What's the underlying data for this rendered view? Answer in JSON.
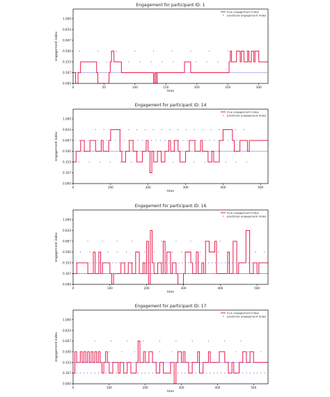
{
  "colors": {
    "true_line": "#e8194a",
    "pred_dots": "#2d2df0",
    "axis": "#000000",
    "frame": "#000000"
  },
  "chart_data": [
    {
      "type": "line",
      "title": "Engagement for participant ID: 1",
      "xlabel": "time",
      "ylabel": "engagement index",
      "xlim": [
        0,
        315
      ],
      "ylim": [
        0,
        1.15
      ],
      "xticks": [
        0,
        50,
        100,
        150,
        200,
        250,
        300
      ],
      "yticks": [
        0.0,
        0.167,
        0.333,
        0.5,
        0.667,
        0.833,
        1.0
      ],
      "ytick_labels": [
        "0.000",
        "0.167",
        "0.333",
        "0.500",
        "0.667",
        "0.833",
        "1.000"
      ],
      "legend": {
        "position": "top-right",
        "entries": [
          "true engagement index",
          "predicted engagement index"
        ]
      },
      "series": [
        {
          "name": "true engagement index",
          "kind": "step",
          "x": [
            0,
            4,
            8,
            12,
            38,
            40,
            58,
            60,
            62,
            66,
            78,
            80,
            130,
            132,
            134,
            136,
            170,
            172,
            180,
            190,
            252,
            254,
            256,
            264,
            270,
            272,
            276,
            282,
            284,
            288,
            292,
            294,
            300,
            315
          ],
          "y": [
            0.167,
            0.0,
            0.167,
            0.333,
            0.167,
            0.0,
            0.167,
            0.333,
            0.5,
            0.333,
            0.167,
            0.167,
            0.0,
            0.167,
            0.0,
            0.167,
            0.167,
            0.167,
            0.333,
            0.167,
            0.333,
            0.5,
            0.333,
            0.5,
            0.333,
            0.5,
            0.333,
            0.5,
            0.333,
            0.5,
            0.333,
            0.5,
            0.333,
            0.333
          ]
        },
        {
          "name": "predicted engagement index",
          "kind": "dots",
          "levels": [
            {
              "y": 0.167,
              "x_from": 0,
              "x_to": 315,
              "step": 2.5
            },
            {
              "y": 0.333,
              "x_from": 0,
              "x_to": 300,
              "step": 18
            },
            {
              "y": 0.5,
              "x_from": 10,
              "x_to": 300,
              "step": 30
            }
          ]
        }
      ]
    },
    {
      "type": "line",
      "title": "Engagement for participant ID: 14",
      "xlabel": "time",
      "ylabel": "engagement index",
      "xlim": [
        0,
        520
      ],
      "ylim": [
        0,
        1.15
      ],
      "xticks": [
        0,
        100,
        200,
        300,
        400,
        500
      ],
      "yticks": [
        0.0,
        0.167,
        0.333,
        0.5,
        0.667,
        0.833,
        1.0
      ],
      "ytick_labels": [
        "0.000",
        "0.167",
        "0.333",
        "0.500",
        "0.667",
        "0.833",
        "1.000"
      ],
      "legend": {
        "position": "top-right",
        "entries": [
          "true engagement index",
          "predicted engagement index"
        ]
      },
      "series": [
        {
          "name": "true engagement index",
          "kind": "step",
          "x": [
            0,
            8,
            20,
            30,
            45,
            60,
            75,
            80,
            95,
            100,
            125,
            130,
            140,
            150,
            160,
            170,
            185,
            195,
            200,
            205,
            210,
            215,
            225,
            235,
            245,
            255,
            260,
            270,
            280,
            285,
            300,
            310,
            325,
            340,
            345,
            360,
            370,
            375,
            390,
            400,
            425,
            430,
            445,
            465,
            470,
            500,
            520
          ],
          "y": [
            0.333,
            0.5,
            0.667,
            0.5,
            0.667,
            0.5,
            0.667,
            0.5,
            0.667,
            0.833,
            0.5,
            0.333,
            0.5,
            0.667,
            0.5,
            0.333,
            0.5,
            0.667,
            0.5,
            0.167,
            0.5,
            0.333,
            0.5,
            0.333,
            0.5,
            0.667,
            0.5,
            0.667,
            0.5,
            0.333,
            0.5,
            0.667,
            0.5,
            0.667,
            0.5,
            0.333,
            0.5,
            0.333,
            0.667,
            0.833,
            0.667,
            0.5,
            0.667,
            0.5,
            0.667,
            0.667,
            0.667
          ]
        },
        {
          "name": "predicted engagement index",
          "kind": "dots",
          "levels": [
            {
              "y": 0.5,
              "x_from": 0,
              "x_to": 520,
              "step": 4
            },
            {
              "y": 0.667,
              "x_from": 5,
              "x_to": 515,
              "step": 12
            },
            {
              "y": 0.833,
              "x_from": 60,
              "x_to": 470,
              "step": 22
            },
            {
              "y": 0.333,
              "x_from": 15,
              "x_to": 480,
              "step": 28
            }
          ]
        }
      ]
    },
    {
      "type": "line",
      "title": "Engagement for participant ID: 16",
      "xlabel": "time",
      "ylabel": "engagement index",
      "xlim": [
        0,
        530
      ],
      "ylim": [
        0,
        1.15
      ],
      "xticks": [
        0,
        100,
        200,
        300,
        400,
        500
      ],
      "yticks": [
        0.0,
        0.167,
        0.333,
        0.5,
        0.667,
        0.833,
        1.0
      ],
      "ytick_labels": [
        "0.000",
        "0.167",
        "0.333",
        "0.500",
        "0.667",
        "0.833",
        "1.000"
      ],
      "legend": {
        "position": "top-right",
        "entries": [
          "true engagement index",
          "predicted engagement index"
        ]
      },
      "series": [
        {
          "name": "true engagement index",
          "kind": "step",
          "x": [
            0,
            10,
            30,
            40,
            55,
            60,
            70,
            75,
            80,
            100,
            105,
            110,
            130,
            140,
            150,
            160,
            170,
            180,
            190,
            195,
            200,
            205,
            210,
            215,
            220,
            230,
            240,
            245,
            250,
            255,
            265,
            270,
            280,
            285,
            300,
            305,
            320,
            325,
            335,
            340,
            350,
            355,
            360,
            370,
            385,
            390,
            410,
            420,
            425,
            435,
            445,
            450,
            470,
            480,
            490,
            500,
            505,
            530
          ],
          "y": [
            0.167,
            0.333,
            0.333,
            0.167,
            0.5,
            0.167,
            0.5,
            0.167,
            0.333,
            0.167,
            0.0,
            0.167,
            0.333,
            0.167,
            0.333,
            0.167,
            0.5,
            0.167,
            0.333,
            0.167,
            0.667,
            0.0,
            0.833,
            0.333,
            0.167,
            0.333,
            0.167,
            0.667,
            0.167,
            0.5,
            0.167,
            0.333,
            0.167,
            0.0,
            0.167,
            0.5,
            0.333,
            0.167,
            0.5,
            0.167,
            0.333,
            0.167,
            0.667,
            0.5,
            0.667,
            0.167,
            0.167,
            0.5,
            0.167,
            0.667,
            0.167,
            0.333,
            0.833,
            0.167,
            0.333,
            0.167,
            0.333,
            0.333
          ]
        },
        {
          "name": "predicted engagement index",
          "kind": "dots",
          "levels": [
            {
              "y": 0.167,
              "x_from": 0,
              "x_to": 530,
              "step": 3
            },
            {
              "y": 0.333,
              "x_from": 0,
              "x_to": 530,
              "step": 9
            },
            {
              "y": 0.5,
              "x_from": 20,
              "x_to": 520,
              "step": 25
            },
            {
              "y": 0.667,
              "x_from": 40,
              "x_to": 500,
              "step": 40
            }
          ]
        }
      ]
    },
    {
      "type": "line",
      "title": "Engagement for participant ID: 17",
      "xlabel": "time",
      "ylabel": "engagement index",
      "xlim": [
        0,
        540
      ],
      "ylim": [
        0,
        1.15
      ],
      "xticks": [
        0,
        100,
        200,
        300,
        400,
        500
      ],
      "yticks": [
        0.0,
        0.167,
        0.333,
        0.5,
        0.667,
        0.833,
        1.0
      ],
      "ytick_labels": [
        "0.000",
        "0.167",
        "0.333",
        "0.500",
        "0.667",
        "0.833",
        "1.000"
      ],
      "legend": {
        "position": "top-right",
        "entries": [
          "true engagement index",
          "predicted engagement index"
        ]
      },
      "series": [
        {
          "name": "true engagement index",
          "kind": "step",
          "x": [
            0,
            5,
            10,
            20,
            25,
            30,
            35,
            40,
            45,
            50,
            55,
            60,
            65,
            70,
            75,
            80,
            85,
            90,
            95,
            100,
            110,
            125,
            130,
            140,
            150,
            160,
            175,
            180,
            185,
            195,
            200,
            210,
            220,
            230,
            240,
            250,
            270,
            280,
            285,
            290,
            300,
            305,
            310,
            320,
            330,
            345,
            350,
            360,
            375,
            380,
            400,
            405,
            420,
            430,
            440,
            445,
            460,
            470,
            480,
            490,
            500,
            510,
            540
          ],
          "y": [
            0.167,
            0.5,
            0.333,
            0.5,
            0.333,
            0.5,
            0.333,
            0.5,
            0.333,
            0.5,
            0.333,
            0.5,
            0.333,
            0.5,
            0.333,
            0.167,
            0.333,
            0.5,
            0.333,
            0.167,
            0.333,
            0.167,
            0.333,
            0.167,
            0.333,
            0.167,
            0.333,
            0.667,
            0.333,
            0.5,
            0.333,
            0.5,
            0.333,
            0.167,
            0.333,
            0.167,
            0.333,
            0.0,
            0.333,
            0.5,
            0.333,
            0.5,
            0.333,
            0.167,
            0.333,
            0.5,
            0.167,
            0.333,
            0.5,
            0.333,
            0.333,
            0.5,
            0.333,
            0.167,
            0.333,
            0.167,
            0.333,
            0.5,
            0.333,
            0.5,
            0.333,
            0.333,
            0.333
          ]
        },
        {
          "name": "predicted engagement index",
          "kind": "dots",
          "levels": [
            {
              "y": 0.333,
              "x_from": 0,
              "x_to": 540,
              "step": 4
            },
            {
              "y": 0.167,
              "x_from": 0,
              "x_to": 540,
              "step": 10
            },
            {
              "y": 0.5,
              "x_from": 30,
              "x_to": 520,
              "step": 35
            },
            {
              "y": 0.667,
              "x_from": 60,
              "x_to": 500,
              "step": 45
            }
          ]
        }
      ]
    }
  ]
}
